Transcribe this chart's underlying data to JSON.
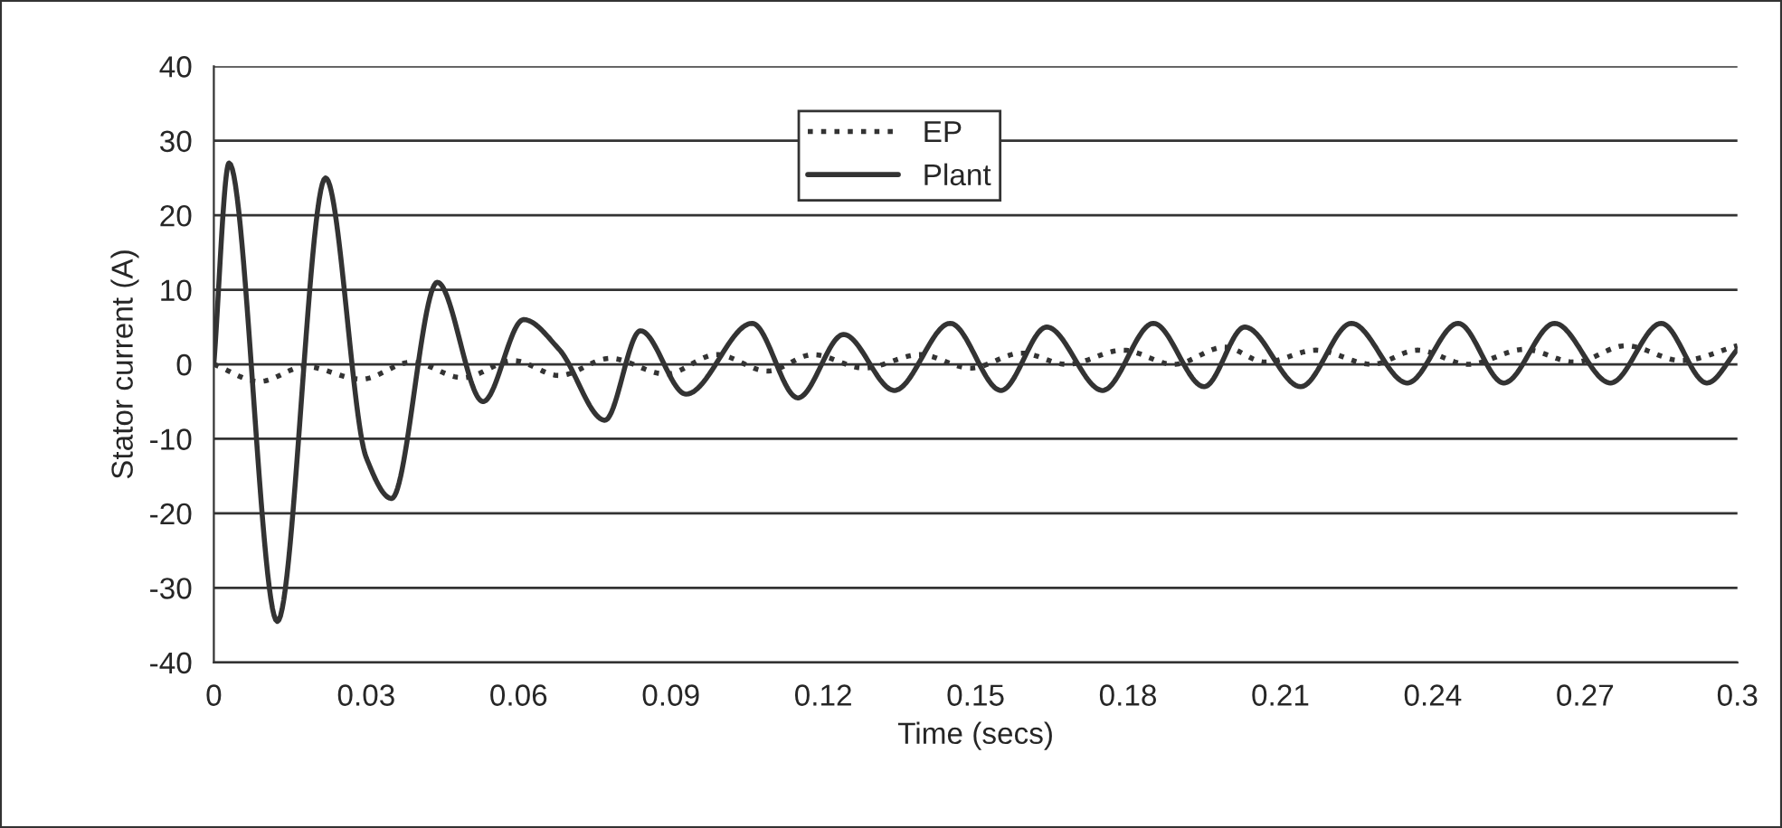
{
  "chart_data": {
    "type": "line",
    "xlabel": "Time (secs)",
    "ylabel": "Stator current (A)",
    "xlim": [
      0,
      0.3
    ],
    "xticks": [
      0,
      0.03,
      0.06,
      0.09,
      0.12,
      0.15,
      0.18,
      0.21,
      0.24,
      0.27,
      0.3
    ],
    "ylim": [
      -40,
      40
    ],
    "yticks": [
      -40,
      -30,
      -20,
      -10,
      0,
      10,
      20,
      30,
      40
    ],
    "grid": "y",
    "legend": "top",
    "marker": "none",
    "series": [
      {
        "name": "EP",
        "color": "#333333",
        "line_style": "dotted",
        "x": [
          0,
          0.009,
          0.018,
          0.029,
          0.039,
          0.049,
          0.059,
          0.068,
          0.078,
          0.089,
          0.099,
          0.109,
          0.118,
          0.128,
          0.139,
          0.149,
          0.159,
          0.168,
          0.179,
          0.189,
          0.199,
          0.207,
          0.217,
          0.228,
          0.237,
          0.247,
          0.258,
          0.268,
          0.278,
          0.289,
          0.3
        ],
        "values": [
          0,
          -2.3,
          -0.3,
          -2,
          0.3,
          -1.8,
          0.5,
          -1.5,
          0.8,
          -1.3,
          1.3,
          -0.9,
          1.3,
          -0.5,
          1.3,
          -0.5,
          1.5,
          0,
          1.9,
          0,
          2.3,
          0.3,
          1.9,
          0,
          1.9,
          0,
          2,
          0.3,
          2.5,
          0.5,
          2.5
        ]
      },
      {
        "name": "Plant",
        "color": "#333333",
        "line_style": "solid",
        "x": [
          0,
          0.003,
          0.0125,
          0.022,
          0.03,
          0.035,
          0.044,
          0.053,
          0.061,
          0.068,
          0.077,
          0.084,
          0.093,
          0.106,
          0.115,
          0.124,
          0.134,
          0.145,
          0.155,
          0.164,
          0.175,
          0.185,
          0.195,
          0.203,
          0.214,
          0.224,
          0.235,
          0.245,
          0.254,
          0.264,
          0.275,
          0.285,
          0.294,
          0.3
        ],
        "values": [
          0,
          27,
          -34.5,
          25,
          -12.5,
          -18,
          11,
          -5,
          6,
          2,
          -7.5,
          4.5,
          -4,
          5.5,
          -4.5,
          4,
          -3.5,
          5.5,
          -3.5,
          5,
          -3.5,
          5.5,
          -3,
          5,
          -3,
          5.5,
          -2.5,
          5.5,
          -2.5,
          5.5,
          -2.5,
          5.5,
          -2.5,
          2
        ]
      }
    ]
  }
}
